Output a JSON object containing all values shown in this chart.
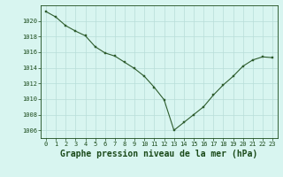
{
  "x": [
    0,
    1,
    2,
    3,
    4,
    5,
    6,
    7,
    8,
    9,
    10,
    11,
    12,
    13,
    14,
    15,
    16,
    17,
    18,
    19,
    20,
    21,
    22,
    23
  ],
  "y": [
    1021.2,
    1020.5,
    1019.4,
    1018.7,
    1018.1,
    1016.7,
    1015.9,
    1015.5,
    1014.7,
    1013.9,
    1012.9,
    1011.5,
    1009.9,
    1006.0,
    1007.0,
    1008.0,
    1009.0,
    1010.5,
    1011.8,
    1012.9,
    1014.2,
    1015.0,
    1015.4,
    1015.3
  ],
  "line_color": "#2d5c2d",
  "marker_color": "#2d5c2d",
  "bg_color": "#d8f5f0",
  "grid_color": "#b8ddd8",
  "label_color": "#1a4a1a",
  "xlabel": "Graphe pression niveau de la mer (hPa)",
  "ylim_min": 1005.0,
  "ylim_max": 1022.0,
  "yticks": [
    1006,
    1008,
    1010,
    1012,
    1014,
    1016,
    1018,
    1020
  ],
  "xticks": [
    0,
    1,
    2,
    3,
    4,
    5,
    6,
    7,
    8,
    9,
    10,
    11,
    12,
    13,
    14,
    15,
    16,
    17,
    18,
    19,
    20,
    21,
    22,
    23
  ],
  "tick_label_fontsize": 5.0,
  "xlabel_fontsize": 7.0,
  "linewidth": 0.8,
  "markersize": 2.0
}
